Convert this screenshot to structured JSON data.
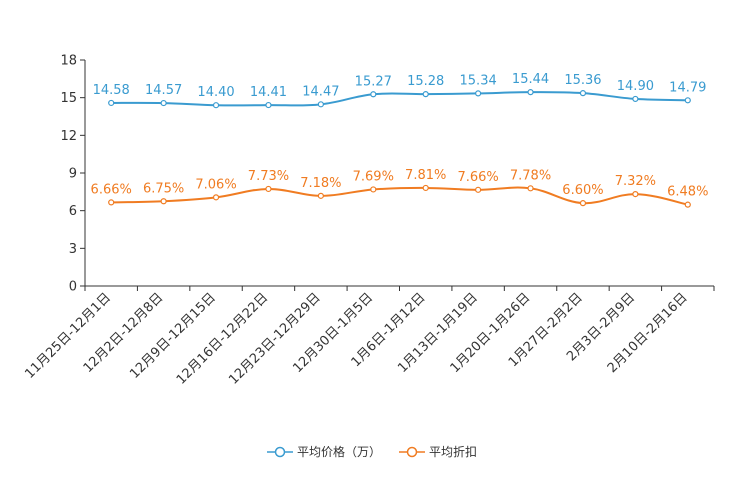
{
  "chart_data": {
    "type": "line",
    "categories": [
      "11月25日-12月1日",
      "12月2日-12月8日",
      "12月9日-12月15日",
      "12月16日-12月22日",
      "12月23日-12月29日",
      "12月30日-1月5日",
      "1月6日-1月12日",
      "1月13日-1月19日",
      "1月20日-1月26日",
      "1月27日-2月2日",
      "2月3日-2月9日",
      "2月10日-2月16日"
    ],
    "series": [
      {
        "name": "平均价格（万）",
        "color": "#3a9bd0",
        "values": [
          14.58,
          14.57,
          14.4,
          14.41,
          14.47,
          15.27,
          15.28,
          15.34,
          15.44,
          15.36,
          14.9,
          14.79
        ],
        "labels": [
          "14.58",
          "14.57",
          "14.40",
          "14.41",
          "14.47",
          "15.27",
          "15.28",
          "15.34",
          "15.44",
          "15.36",
          "14.90",
          "14.79"
        ]
      },
      {
        "name": "平均折扣",
        "color": "#f07c22",
        "values": [
          6.66,
          6.75,
          7.06,
          7.73,
          7.18,
          7.69,
          7.81,
          7.66,
          7.78,
          6.6,
          7.32,
          6.48
        ],
        "labels": [
          "6.66%",
          "6.75%",
          "7.06%",
          "7.73%",
          "7.18%",
          "7.69%",
          "7.81%",
          "7.66%",
          "7.78%",
          "6.60%",
          "7.32%",
          "6.48%"
        ]
      }
    ],
    "yticks": [
      "0",
      "3",
      "6",
      "9",
      "12",
      "15",
      "18"
    ],
    "ylim": [
      0,
      18
    ],
    "legend_position": "bottom-center"
  }
}
